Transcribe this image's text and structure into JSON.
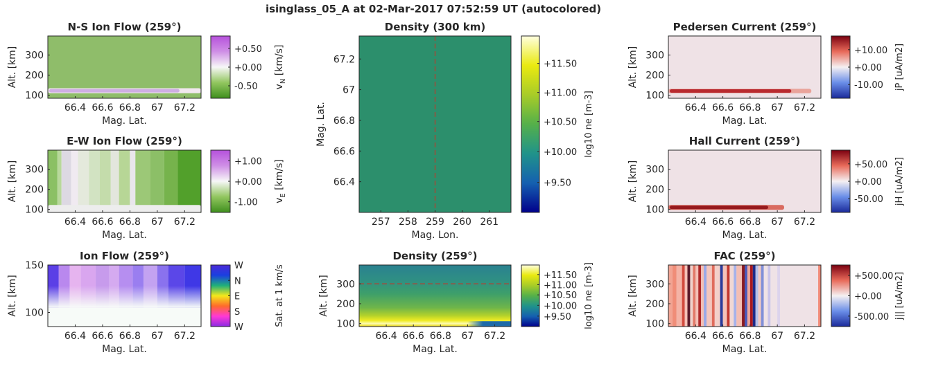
{
  "title": "isinglass_05_A at 02-Mar-2017 07:52:59 UT (autocolored)",
  "chart_data": [
    {
      "id": "ns",
      "type": "heatmap",
      "title": "N-S Ion Flow (259°)",
      "xlabel": "Mag. Lat.",
      "ylabel": "Alt. [km]",
      "xlim": [
        66.2,
        67.32
      ],
      "ylim": [
        85,
        395
      ],
      "xticks": [
        66.4,
        66.6,
        66.8,
        67,
        67.2
      ],
      "xticklabels": [
        "66.4",
        "66.6",
        "66.8",
        "67",
        "67.2"
      ],
      "yticks": [
        100,
        200,
        300
      ],
      "yticklabels": [
        "100",
        "200",
        "300"
      ],
      "colorbar": {
        "label": "v_N [km/s]",
        "label_base": "v",
        "label_sub": "N",
        "label_rest": " [km/s]",
        "ticks": [
          "+0.50",
          "+0.00",
          "-0.50"
        ],
        "tick_pos": [
          0.8,
          0.5,
          0.2
        ],
        "colors": [
          "#3f8f1e",
          "#92c65f",
          "#f7f7f7",
          "#cf8fe6",
          "#b651dc"
        ]
      },
      "background_color": "#8fbd6a",
      "band": {
        "y_range": [
          110,
          135
        ],
        "color": "#f2e8ef",
        "accent": "#c9a3e2"
      }
    },
    {
      "id": "ew",
      "type": "heatmap",
      "title": "E-W Ion Flow (259°)",
      "xlabel": "Mag. Lat.",
      "ylabel": "Alt. [km]",
      "xlim": [
        66.2,
        67.32
      ],
      "ylim": [
        85,
        395
      ],
      "xticks": [
        66.4,
        66.6,
        66.8,
        67,
        67.2
      ],
      "xticklabels": [
        "66.4",
        "66.6",
        "66.8",
        "67",
        "67.2"
      ],
      "yticks": [
        100,
        200,
        300
      ],
      "yticklabels": [
        "100",
        "200",
        "300"
      ],
      "colorbar": {
        "label": "v_E [km/s]",
        "label_base": "v",
        "label_sub": "E",
        "label_rest": " [km/s]",
        "ticks": [
          "+1.00",
          "+0.00",
          "-1.00"
        ],
        "tick_pos": [
          0.83,
          0.5,
          0.17
        ],
        "colors": [
          "#3f8f1e",
          "#92c65f",
          "#f7f7f7",
          "#cf8fe6",
          "#b651dc"
        ]
      },
      "columns": [
        {
          "x": [
            66.2,
            66.27
          ],
          "color": "#8bc064"
        },
        {
          "x": [
            66.27,
            66.3
          ],
          "color": "#b8d89b"
        },
        {
          "x": [
            66.3,
            66.37
          ],
          "color": "#ddd9e3"
        },
        {
          "x": [
            66.37,
            66.42
          ],
          "color": "#f0eaf1"
        },
        {
          "x": [
            66.42,
            66.5
          ],
          "color": "#e4e9dc"
        },
        {
          "x": [
            66.5,
            66.58
          ],
          "color": "#d2e3c2"
        },
        {
          "x": [
            66.58,
            66.66
          ],
          "color": "#c4dcab"
        },
        {
          "x": [
            66.66,
            66.72
          ],
          "color": "#e3e6dd"
        },
        {
          "x": [
            66.72,
            66.8
          ],
          "color": "#b7d696"
        },
        {
          "x": [
            66.8,
            66.84
          ],
          "color": "#e9e6ec"
        },
        {
          "x": [
            66.84,
            66.95
          ],
          "color": "#9cc877"
        },
        {
          "x": [
            66.95,
            67.05
          ],
          "color": "#8cbf67"
        },
        {
          "x": [
            67.05,
            67.15
          ],
          "color": "#76b34c"
        },
        {
          "x": [
            67.15,
            67.32
          ],
          "color": "#52a02b"
        }
      ],
      "band": {
        "y_range": [
          85,
          122
        ],
        "color": "#ededed"
      }
    },
    {
      "id": "ionflow",
      "type": "heatmap",
      "title": "Ion Flow (259°)",
      "xlabel": "Mag. Lat.",
      "ylabel": "Alt. [km]",
      "xlim": [
        66.2,
        67.32
      ],
      "ylim": [
        85,
        150
      ],
      "xticks": [
        66.4,
        66.6,
        66.8,
        67,
        67.2
      ],
      "xticklabels": [
        "66.4",
        "66.6",
        "66.8",
        "67",
        "67.2"
      ],
      "yticks": [
        100,
        150
      ],
      "yticklabels": [
        "100",
        "150"
      ],
      "colorbar": {
        "label": "Sat. at 1 km/s",
        "ticks": [
          "W",
          "N",
          "E",
          "S",
          "W"
        ],
        "tick_pos": [
          1.0,
          0.75,
          0.5,
          0.25,
          0.0
        ],
        "colors": [
          "#8a2be2",
          "#ff38d6",
          "#ff6a2b",
          "#f4e81a",
          "#20b07a",
          "#1a3fe0",
          "#4a2ad8"
        ]
      },
      "columns": [
        {
          "x": [
            66.2,
            66.28
          ],
          "color": "#5b3fe6"
        },
        {
          "x": [
            66.28,
            66.36
          ],
          "color": "#b988ee"
        },
        {
          "x": [
            66.36,
            66.44
          ],
          "color": "#e6b4ef"
        },
        {
          "x": [
            66.44,
            66.55
          ],
          "color": "#d9a6ef"
        },
        {
          "x": [
            66.55,
            66.65
          ],
          "color": "#c79bec"
        },
        {
          "x": [
            66.65,
            66.72
          ],
          "color": "#d5aaf0"
        },
        {
          "x": [
            66.72,
            66.82
          ],
          "color": "#b68ef0"
        },
        {
          "x": [
            66.82,
            66.9
          ],
          "color": "#9a7ef0"
        },
        {
          "x": [
            66.9,
            67.0
          ],
          "color": "#c3a2f1"
        },
        {
          "x": [
            67.0,
            67.08
          ],
          "color": "#8a72ee"
        },
        {
          "x": [
            67.08,
            67.2
          ],
          "color": "#5b47e8"
        },
        {
          "x": [
            67.2,
            67.32
          ],
          "color": "#3f38e6"
        }
      ],
      "fade_range": [
        105,
        128
      ]
    },
    {
      "id": "dens300",
      "type": "heatmap",
      "title": "Density (300 km)",
      "xlabel": "Mag. Lon.",
      "ylabel": "Mag. Lat.",
      "xlim": [
        256.2,
        261.8
      ],
      "ylim": [
        66.2,
        67.35
      ],
      "xticks": [
        257,
        258,
        259,
        260,
        261
      ],
      "xticklabels": [
        "257",
        "258",
        "259",
        "260",
        "261"
      ],
      "yticks": [
        66.4,
        66.6,
        66.8,
        67,
        67.2
      ],
      "yticklabels": [
        "66.4",
        "66.6",
        "66.8",
        "67",
        "67.2"
      ],
      "colorbar": {
        "label": "log10 ne [m-3]",
        "ticks": [
          "+11.50",
          "+11.00",
          "+10.50",
          "+10.00",
          "+9.50"
        ],
        "tick_pos": [
          0.845,
          0.68,
          0.515,
          0.345,
          0.17
        ],
        "colors": [
          "#00008b",
          "#1560b0",
          "#20938a",
          "#55b04a",
          "#a8cc28",
          "#eaea10",
          "#ffffe0"
        ]
      },
      "background_color": "#2c8f6c",
      "reference_line": {
        "axis": "x",
        "value": 259,
        "color": "#c0392b"
      }
    },
    {
      "id": "dens259",
      "type": "heatmap",
      "title": "Density (259°)",
      "xlabel": "Mag. Lat.",
      "ylabel": "Alt. [km]",
      "xlim": [
        66.2,
        67.32
      ],
      "ylim": [
        85,
        395
      ],
      "xticks": [
        66.4,
        66.6,
        66.8,
        67,
        67.2
      ],
      "xticklabels": [
        "66.4",
        "66.6",
        "66.8",
        "67",
        "67.2"
      ],
      "yticks": [
        100,
        200,
        300
      ],
      "yticklabels": [
        "100",
        "200",
        "300"
      ],
      "colorbar": {
        "label": "log10 ne [m-3]",
        "ticks": [
          "+11.50",
          "+11.00",
          "+10.50",
          "+10.00",
          "+9.50"
        ],
        "tick_pos": [
          0.845,
          0.68,
          0.515,
          0.345,
          0.17
        ],
        "colors": [
          "#00008b",
          "#1560b0",
          "#20938a",
          "#55b04a",
          "#a8cc28",
          "#eaea10",
          "#ffffe0"
        ]
      },
      "vertical_gradient": [
        {
          "alt": 395,
          "color": "#2a8190"
        },
        {
          "alt": 320,
          "color": "#2f8f84"
        },
        {
          "alt": 250,
          "color": "#3e9f6a"
        },
        {
          "alt": 180,
          "color": "#6fb54a"
        },
        {
          "alt": 140,
          "color": "#b4d22a"
        },
        {
          "alt": 115,
          "color": "#f0ec24"
        },
        {
          "alt": 100,
          "color": "#fdfbb0"
        },
        {
          "alt": 90,
          "color": "#eee23a"
        },
        {
          "alt": 85,
          "color": "#caa830"
        }
      ],
      "low_region": {
        "x_range": [
          67.0,
          67.32
        ],
        "color": "#1d6aa8"
      },
      "reference_line": {
        "axis": "y",
        "value": 300,
        "color": "#c0392b"
      }
    },
    {
      "id": "ped",
      "type": "heatmap",
      "title": "Pedersen Current (259°)",
      "xlabel": "Mag. Lat.",
      "ylabel": "Alt. [km]",
      "xlim": [
        66.2,
        67.32
      ],
      "ylim": [
        85,
        395
      ],
      "xticks": [
        66.4,
        66.6,
        66.8,
        67,
        67.2
      ],
      "xticklabels": [
        "66.4",
        "66.6",
        "66.8",
        "67",
        "67.2"
      ],
      "yticks": [
        100,
        200,
        300
      ],
      "yticklabels": [
        "100",
        "200",
        "300"
      ],
      "colorbar": {
        "label": "jP [uA/m2]",
        "ticks": [
          "+10.00",
          "+0.00",
          "-10.00"
        ],
        "tick_pos": [
          0.78,
          0.5,
          0.22
        ],
        "colors": [
          "#1a2a9a",
          "#6a8ee8",
          "#f5f0f2",
          "#e86a5a",
          "#7a0010"
        ]
      },
      "background_color": "#efe2e6",
      "band": {
        "y_range": [
          110,
          132
        ],
        "color": "#e9a39a",
        "accent": "#b0141b",
        "fade_end": 67.25
      }
    },
    {
      "id": "hall",
      "type": "heatmap",
      "title": "Hall Current (259°)",
      "xlabel": "Mag. Lat.",
      "ylabel": "Alt. [km]",
      "xlim": [
        66.2,
        67.32
      ],
      "ylim": [
        85,
        395
      ],
      "xticks": [
        66.4,
        66.6,
        66.8,
        67,
        67.2
      ],
      "xticklabels": [
        "66.4",
        "66.6",
        "66.8",
        "67",
        "67.2"
      ],
      "yticks": [
        100,
        200,
        300
      ],
      "yticklabels": [
        "100",
        "200",
        "300"
      ],
      "colorbar": {
        "label": "jH [uA/m2]",
        "ticks": [
          "+50.00",
          "+0.00",
          "-50.00"
        ],
        "tick_pos": [
          0.78,
          0.5,
          0.22
        ],
        "colors": [
          "#1a2a9a",
          "#6a8ee8",
          "#f5f0f2",
          "#e86a5a",
          "#7a0010"
        ]
      },
      "background_color": "#efe2e6",
      "band": {
        "y_range": [
          98,
          122
        ],
        "color": "#d96a5f",
        "accent": "#8a0a12",
        "fade_end": 67.05
      }
    },
    {
      "id": "fac",
      "type": "heatmap",
      "title": "FAC (259°)",
      "xlabel": "Mag. Lat.",
      "ylabel": "Alt. [km]",
      "xlim": [
        66.2,
        67.32
      ],
      "ylim": [
        85,
        395
      ],
      "xticks": [
        66.4,
        66.6,
        66.8,
        67,
        67.2
      ],
      "xticklabels": [
        "66.4",
        "66.6",
        "66.8",
        "67",
        "67.2"
      ],
      "yticks": [
        100,
        200,
        300
      ],
      "yticklabels": [
        "100",
        "200",
        "300"
      ],
      "colorbar": {
        "label": "j|| [uA/m2]",
        "ticks": [
          "+500.00",
          "+0.00",
          "-500.00"
        ],
        "tick_pos": [
          0.83,
          0.5,
          0.17
        ],
        "colors": [
          "#1a2a9a",
          "#6a8ee8",
          "#f5f0f2",
          "#e86a5a",
          "#7a0010"
        ]
      },
      "background_color": "#efe2e6",
      "columns": [
        {
          "x": [
            66.2,
            66.23
          ],
          "color": "#f2a493"
        },
        {
          "x": [
            66.23,
            66.26
          ],
          "color": "#f08d78"
        },
        {
          "x": [
            66.26,
            66.3
          ],
          "color": "#f4b3a6"
        },
        {
          "x": [
            66.3,
            66.32
          ],
          "color": "#d24a3d"
        },
        {
          "x": [
            66.32,
            66.34
          ],
          "color": "#f5c2b8"
        },
        {
          "x": [
            66.34,
            66.36
          ],
          "color": "#5a1a2a"
        },
        {
          "x": [
            66.36,
            66.38
          ],
          "color": "#f0d2cc"
        },
        {
          "x": [
            66.38,
            66.4
          ],
          "color": "#e27a69"
        },
        {
          "x": [
            66.4,
            66.42
          ],
          "color": "#f4c1b7"
        },
        {
          "x": [
            66.42,
            66.44
          ],
          "color": "#b02a2a"
        },
        {
          "x": [
            66.44,
            66.46
          ],
          "color": "#f3bfb5"
        },
        {
          "x": [
            66.46,
            66.48
          ],
          "color": "#9aa8e8"
        },
        {
          "x": [
            66.48,
            66.52
          ],
          "color": "#f4c6bd"
        },
        {
          "x": [
            66.52,
            66.54
          ],
          "color": "#e06c5c"
        },
        {
          "x": [
            66.54,
            66.58
          ],
          "color": "#f3d0c9"
        },
        {
          "x": [
            66.58,
            66.6
          ],
          "color": "#2a3a9a"
        },
        {
          "x": [
            66.6,
            66.63
          ],
          "color": "#f4c3ba"
        },
        {
          "x": [
            66.63,
            66.65
          ],
          "color": "#c2362e"
        },
        {
          "x": [
            66.65,
            66.68
          ],
          "color": "#f1d8d4"
        },
        {
          "x": [
            66.68,
            66.7
          ],
          "color": "#a6b2ea"
        },
        {
          "x": [
            66.7,
            66.74
          ],
          "color": "#f4beb3"
        },
        {
          "x": [
            66.74,
            66.76
          ],
          "color": "#8a1a20"
        },
        {
          "x": [
            66.76,
            66.78
          ],
          "color": "#4a58b8"
        },
        {
          "x": [
            66.78,
            66.8
          ],
          "color": "#f0a699"
        },
        {
          "x": [
            66.8,
            66.82
          ],
          "color": "#a8161e"
        },
        {
          "x": [
            66.82,
            66.84
          ],
          "color": "#1e2a88"
        },
        {
          "x": [
            66.84,
            66.86
          ],
          "color": "#b4bfe8"
        },
        {
          "x": [
            66.86,
            66.88
          ],
          "color": "#f2c9c1"
        },
        {
          "x": [
            66.88,
            66.9
          ],
          "color": "#7f8fd8"
        },
        {
          "x": [
            66.9,
            66.93
          ],
          "color": "#efe2e6"
        },
        {
          "x": [
            66.93,
            66.95
          ],
          "color": "#c9c3ea"
        },
        {
          "x": [
            66.95,
            67.0
          ],
          "color": "#efe2e6"
        },
        {
          "x": [
            67.0,
            67.02
          ],
          "color": "#dcd3ec"
        },
        {
          "x": [
            67.02,
            67.3
          ],
          "color": "#efe2e6"
        },
        {
          "x": [
            67.3,
            67.32
          ],
          "color": "#f08a78"
        }
      ]
    }
  ]
}
